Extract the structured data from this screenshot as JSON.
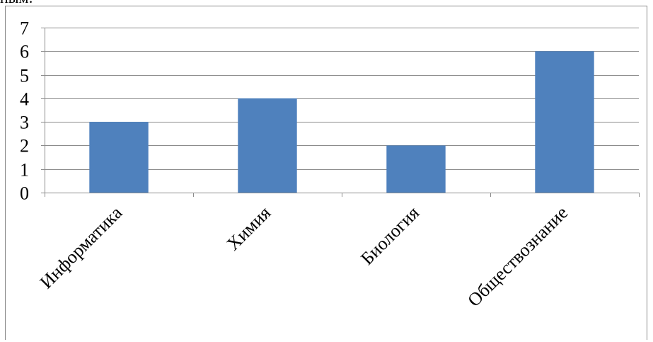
{
  "cut_text": "ным:",
  "colors": {
    "bar": "#4F81BD",
    "grid": "#8C8C8C",
    "axis": "#8C8C8C",
    "text": "#000000"
  },
  "chart_data": {
    "type": "bar",
    "categories": [
      "Информатика",
      "Химия",
      "Биология",
      "Обществознание"
    ],
    "values": [
      3,
      4,
      2,
      6
    ],
    "title": "",
    "xlabel": "",
    "ylabel": "",
    "ylim": [
      0,
      7
    ],
    "yticks": [
      "0",
      "1",
      "2",
      "3",
      "4",
      "5",
      "6",
      "7"
    ],
    "grid": true,
    "legend": "none"
  }
}
